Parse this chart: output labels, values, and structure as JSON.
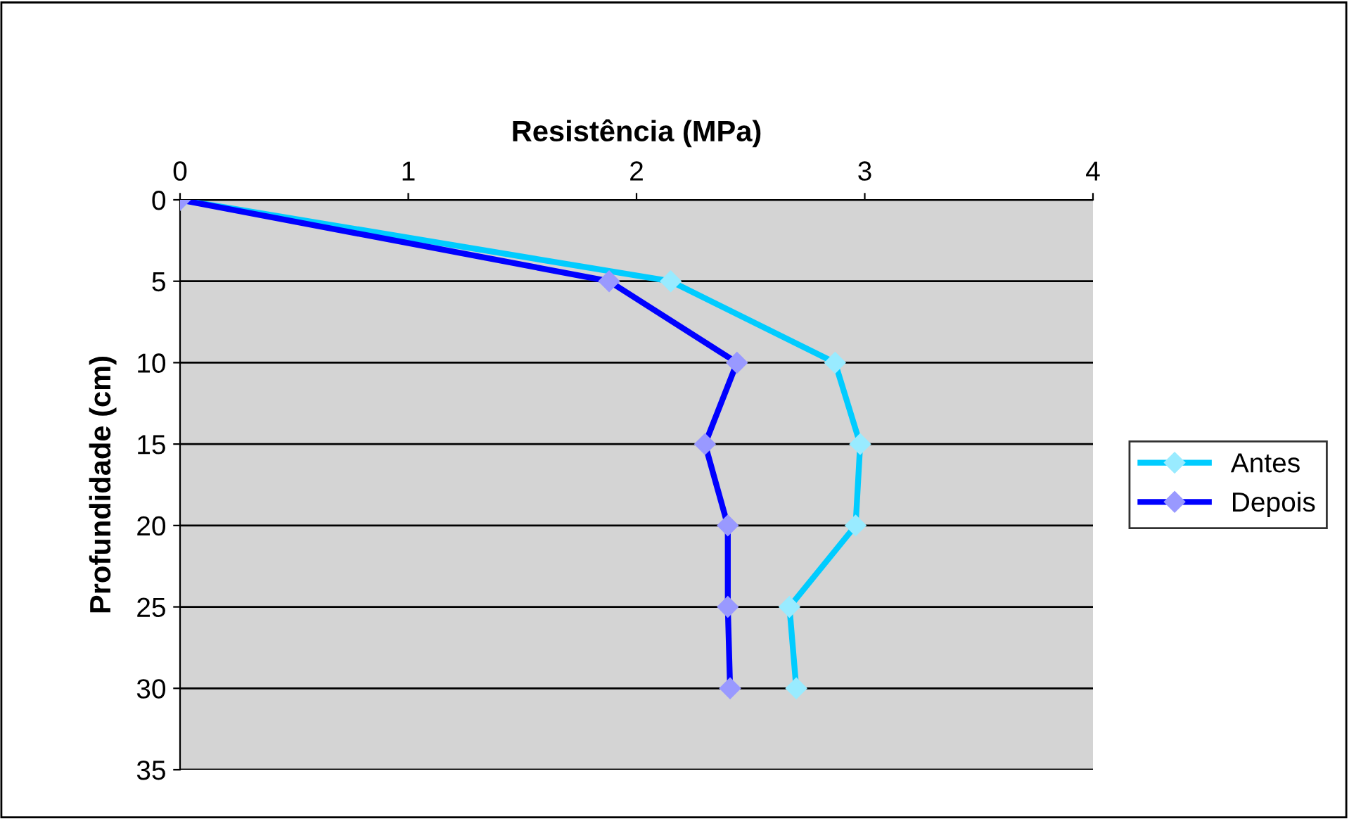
{
  "chart_data": {
    "type": "line",
    "title": "Resistência (MPa)",
    "ylabel": "Profundidade (cm)",
    "series": [
      {
        "name": "Antes",
        "color": "#00ccff",
        "x": [
          0,
          2.15,
          2.87,
          2.98,
          2.96,
          2.67,
          2.7
        ],
        "values": [
          0,
          5,
          10,
          15,
          20,
          25,
          30
        ]
      },
      {
        "name": "Depois",
        "color": "#0000ff",
        "x": [
          0,
          1.88,
          2.44,
          2.3,
          2.4,
          2.4,
          2.41
        ],
        "values": [
          0,
          5,
          10,
          15,
          20,
          25,
          30
        ]
      }
    ],
    "xlim": [
      0,
      4
    ],
    "xticks": [
      0,
      1,
      2,
      3,
      4
    ],
    "ylim": [
      35,
      0
    ],
    "yticks": [
      0,
      5,
      10,
      15,
      20,
      25,
      30,
      35
    ],
    "grid": "y",
    "legend": "right",
    "marker": "diamond",
    "line_style": "solid"
  }
}
